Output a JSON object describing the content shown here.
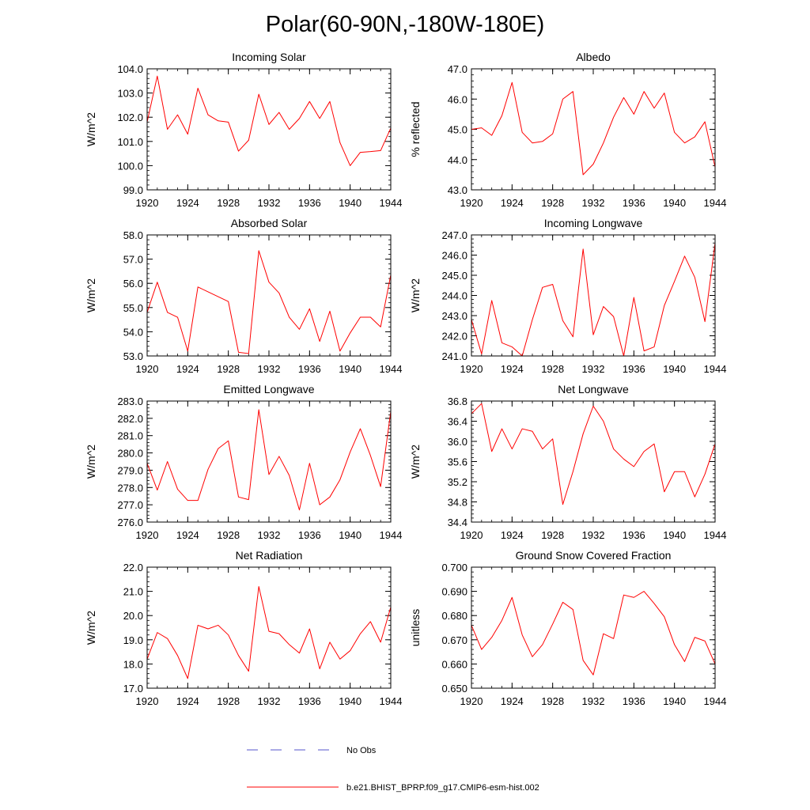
{
  "page_title": "Polar(60-90N,-180W-180E)",
  "legend": {
    "items": [
      {
        "label": "No Obs",
        "color": "#5555cc",
        "dash": true
      },
      {
        "label": "b.e21.BHIST_BPRP.f09_g17.CMIP6-esm-hist.002",
        "color": "#ff0000",
        "dash": false
      }
    ]
  },
  "chart_data": [
    {
      "type": "line",
      "title": "Incoming Solar",
      "ylabel": "W/m^2",
      "xlim": [
        1920,
        1944
      ],
      "ylim": [
        99,
        104
      ],
      "xticks": [
        1920,
        1924,
        1928,
        1932,
        1936,
        1940,
        1944
      ],
      "xtick_labels": [
        "1920",
        "1924",
        "1928",
        "1932",
        "1936",
        "1940",
        "1944"
      ],
      "yticks": [
        99,
        100,
        101,
        102,
        103,
        104
      ],
      "ytick_labels": [
        "99.0",
        "100.0",
        "101.0",
        "102.0",
        "103.0",
        "104.0"
      ],
      "x": [
        1920,
        1921,
        1922,
        1923,
        1924,
        1925,
        1926,
        1927,
        1928,
        1929,
        1930,
        1931,
        1932,
        1933,
        1934,
        1935,
        1936,
        1937,
        1938,
        1939,
        1940,
        1941,
        1942,
        1943,
        1944
      ],
      "series": [
        {
          "color": "#ff0000",
          "values": [
            101.8,
            103.7,
            101.5,
            102.1,
            101.3,
            103.2,
            102.1,
            101.85,
            101.8,
            100.6,
            101.05,
            102.95,
            101.7,
            102.2,
            101.5,
            101.95,
            102.65,
            101.95,
            102.65,
            100.95,
            100.0,
            100.55,
            100.58,
            100.62,
            101.55
          ]
        }
      ]
    },
    {
      "type": "line",
      "title": "Albedo",
      "ylabel": "% reflected",
      "xlim": [
        1920,
        1944
      ],
      "ylim": [
        43,
        47
      ],
      "xticks": [
        1920,
        1924,
        1928,
        1932,
        1936,
        1940,
        1944
      ],
      "xtick_labels": [
        "1920",
        "1924",
        "1928",
        "1932",
        "1936",
        "1940",
        "1944"
      ],
      "yticks": [
        43,
        44,
        45,
        46,
        47
      ],
      "ytick_labels": [
        "43.0",
        "44.0",
        "45.0",
        "46.0",
        "47.0"
      ],
      "x": [
        1920,
        1921,
        1922,
        1923,
        1924,
        1925,
        1926,
        1927,
        1928,
        1929,
        1930,
        1931,
        1932,
        1933,
        1934,
        1935,
        1936,
        1937,
        1938,
        1939,
        1940,
        1941,
        1942,
        1943,
        1944
      ],
      "series": [
        {
          "color": "#ff0000",
          "values": [
            45.0,
            45.05,
            44.8,
            45.45,
            46.55,
            44.9,
            44.55,
            44.6,
            44.85,
            46.0,
            46.25,
            43.5,
            43.85,
            44.55,
            45.4,
            46.05,
            45.5,
            46.25,
            45.7,
            46.2,
            44.9,
            44.55,
            44.75,
            45.25,
            43.75
          ]
        }
      ]
    },
    {
      "type": "line",
      "title": "Absorbed Solar",
      "ylabel": "W/m^2",
      "xlim": [
        1920,
        1944
      ],
      "ylim": [
        53,
        58
      ],
      "xticks": [
        1920,
        1924,
        1928,
        1932,
        1936,
        1940,
        1944
      ],
      "xtick_labels": [
        "1920",
        "1924",
        "1928",
        "1932",
        "1936",
        "1940",
        "1944"
      ],
      "yticks": [
        53,
        54,
        55,
        56,
        57,
        58
      ],
      "ytick_labels": [
        "53.0",
        "54.0",
        "55.0",
        "56.0",
        "57.0",
        "58.0"
      ],
      "x": [
        1920,
        1921,
        1922,
        1923,
        1924,
        1925,
        1926,
        1927,
        1928,
        1929,
        1930,
        1931,
        1932,
        1933,
        1934,
        1935,
        1936,
        1937,
        1938,
        1939,
        1940,
        1941,
        1942,
        1943,
        1944
      ],
      "series": [
        {
          "color": "#ff0000",
          "values": [
            54.8,
            56.05,
            54.8,
            54.6,
            53.2,
            55.85,
            55.65,
            55.45,
            55.25,
            53.15,
            53.1,
            57.35,
            56.05,
            55.6,
            54.6,
            54.1,
            54.95,
            53.6,
            54.85,
            53.2,
            53.95,
            54.6,
            54.6,
            54.2,
            56.35
          ]
        }
      ]
    },
    {
      "type": "line",
      "title": "Incoming Longwave",
      "ylabel": "W/m^2",
      "xlim": [
        1920,
        1944
      ],
      "ylim": [
        241,
        247
      ],
      "xticks": [
        1920,
        1924,
        1928,
        1932,
        1936,
        1940,
        1944
      ],
      "xtick_labels": [
        "1920",
        "1924",
        "1928",
        "1932",
        "1936",
        "1940",
        "1944"
      ],
      "yticks": [
        241,
        242,
        243,
        244,
        245,
        246,
        247
      ],
      "ytick_labels": [
        "241.0",
        "242.0",
        "243.0",
        "244.0",
        "245.0",
        "246.0",
        "247.0"
      ],
      "x": [
        1920,
        1921,
        1922,
        1923,
        1924,
        1925,
        1926,
        1927,
        1928,
        1929,
        1930,
        1931,
        1932,
        1933,
        1934,
        1935,
        1936,
        1937,
        1938,
        1939,
        1940,
        1941,
        1942,
        1943,
        1944
      ],
      "series": [
        {
          "color": "#ff0000",
          "values": [
            242.8,
            241.1,
            243.75,
            241.65,
            241.45,
            241.0,
            242.8,
            244.4,
            244.55,
            242.75,
            241.95,
            246.3,
            242.05,
            243.45,
            242.95,
            241.0,
            243.9,
            241.25,
            241.45,
            243.5,
            244.7,
            245.95,
            244.9,
            242.7,
            246.6
          ]
        }
      ]
    },
    {
      "type": "line",
      "title": "Emitted Longwave",
      "ylabel": "W/m^2",
      "xlim": [
        1920,
        1944
      ],
      "ylim": [
        276,
        283
      ],
      "xticks": [
        1920,
        1924,
        1928,
        1932,
        1936,
        1940,
        1944
      ],
      "xtick_labels": [
        "1920",
        "1924",
        "1928",
        "1932",
        "1936",
        "1940",
        "1944"
      ],
      "yticks": [
        276,
        277,
        278,
        279,
        280,
        281,
        282,
        283
      ],
      "ytick_labels": [
        "276.0",
        "277.0",
        "278.0",
        "279.0",
        "280.0",
        "281.0",
        "282.0",
        "283.0"
      ],
      "x": [
        1920,
        1921,
        1922,
        1923,
        1924,
        1925,
        1926,
        1927,
        1928,
        1929,
        1930,
        1931,
        1932,
        1933,
        1934,
        1935,
        1936,
        1937,
        1938,
        1939,
        1940,
        1941,
        1942,
        1943,
        1944
      ],
      "series": [
        {
          "color": "#ff0000",
          "values": [
            279.4,
            277.85,
            279.5,
            277.9,
            277.25,
            277.25,
            279.05,
            280.25,
            280.7,
            277.45,
            277.3,
            282.5,
            278.75,
            279.8,
            278.7,
            276.7,
            279.4,
            277.0,
            277.45,
            278.45,
            280.05,
            281.4,
            279.85,
            278.05,
            282.4
          ]
        }
      ]
    },
    {
      "type": "line",
      "title": "Net Longwave",
      "ylabel": "W/m^2",
      "xlim": [
        1920,
        1944
      ],
      "ylim": [
        34.4,
        36.8
      ],
      "xticks": [
        1920,
        1924,
        1928,
        1932,
        1936,
        1940,
        1944
      ],
      "xtick_labels": [
        "1920",
        "1924",
        "1928",
        "1932",
        "1936",
        "1940",
        "1944"
      ],
      "yticks": [
        34.4,
        34.8,
        35.2,
        35.6,
        36.0,
        36.4,
        36.8
      ],
      "ytick_labels": [
        "34.4",
        "34.8",
        "35.2",
        "35.6",
        "36.0",
        "36.4",
        "36.8"
      ],
      "x": [
        1920,
        1921,
        1922,
        1923,
        1924,
        1925,
        1926,
        1927,
        1928,
        1929,
        1930,
        1931,
        1932,
        1933,
        1934,
        1935,
        1936,
        1937,
        1938,
        1939,
        1940,
        1941,
        1942,
        1943,
        1944
      ],
      "series": [
        {
          "color": "#ff0000",
          "values": [
            36.55,
            36.75,
            35.8,
            36.25,
            35.85,
            36.25,
            36.2,
            35.85,
            36.05,
            34.75,
            35.4,
            36.15,
            36.7,
            36.4,
            35.85,
            35.65,
            35.5,
            35.8,
            35.95,
            35.0,
            35.4,
            35.4,
            34.9,
            35.35,
            35.95
          ]
        }
      ]
    },
    {
      "type": "line",
      "title": "Net Radiation",
      "ylabel": "W/m^2",
      "xlim": [
        1920,
        1944
      ],
      "ylim": [
        17,
        22
      ],
      "xticks": [
        1920,
        1924,
        1928,
        1932,
        1936,
        1940,
        1944
      ],
      "xtick_labels": [
        "1920",
        "1924",
        "1928",
        "1932",
        "1936",
        "1940",
        "1944"
      ],
      "yticks": [
        17,
        18,
        19,
        20,
        21,
        22
      ],
      "ytick_labels": [
        "17.0",
        "18.0",
        "19.0",
        "20.0",
        "21.0",
        "22.0"
      ],
      "x": [
        1920,
        1921,
        1922,
        1923,
        1924,
        1925,
        1926,
        1927,
        1928,
        1929,
        1930,
        1931,
        1932,
        1933,
        1934,
        1935,
        1936,
        1937,
        1938,
        1939,
        1940,
        1941,
        1942,
        1943,
        1944
      ],
      "series": [
        {
          "color": "#ff0000",
          "values": [
            18.2,
            19.3,
            19.05,
            18.35,
            17.4,
            19.6,
            19.45,
            19.6,
            19.2,
            18.35,
            17.7,
            21.2,
            19.35,
            19.25,
            18.8,
            18.45,
            19.45,
            17.8,
            18.9,
            18.2,
            18.55,
            19.25,
            19.75,
            18.9,
            20.35
          ]
        }
      ]
    },
    {
      "type": "line",
      "title": "Ground Snow Covered Fraction",
      "ylabel": "unitless",
      "xlim": [
        1920,
        1944
      ],
      "ylim": [
        0.65,
        0.7
      ],
      "xticks": [
        1920,
        1924,
        1928,
        1932,
        1936,
        1940,
        1944
      ],
      "xtick_labels": [
        "1920",
        "1924",
        "1928",
        "1932",
        "1936",
        "1940",
        "1944"
      ],
      "yticks": [
        0.65,
        0.66,
        0.67,
        0.68,
        0.69,
        0.7
      ],
      "ytick_labels": [
        "0.650",
        "0.660",
        "0.670",
        "0.680",
        "0.690",
        "0.700"
      ],
      "x": [
        1920,
        1921,
        1922,
        1923,
        1924,
        1925,
        1926,
        1927,
        1928,
        1929,
        1930,
        1931,
        1932,
        1933,
        1934,
        1935,
        1936,
        1937,
        1938,
        1939,
        1940,
        1941,
        1942,
        1943,
        1944
      ],
      "series": [
        {
          "color": "#ff0000",
          "values": [
            0.676,
            0.666,
            0.671,
            0.678,
            0.6875,
            0.672,
            0.663,
            0.668,
            0.6765,
            0.6855,
            0.6825,
            0.6615,
            0.6555,
            0.6725,
            0.6705,
            0.6885,
            0.6875,
            0.69,
            0.685,
            0.6795,
            0.668,
            0.661,
            0.671,
            0.6695,
            0.66
          ]
        }
      ]
    }
  ]
}
